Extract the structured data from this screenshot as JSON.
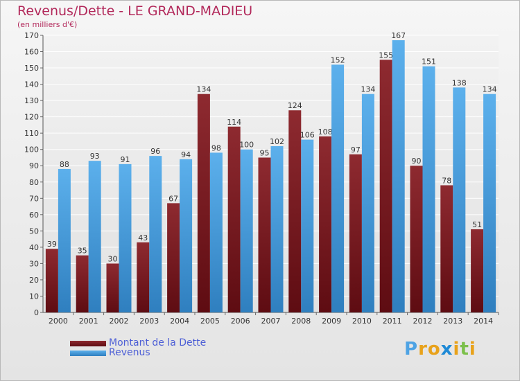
{
  "colors": {
    "debt": "#7a1c22",
    "revenue": "#4ea3e4",
    "title": "#b2285a",
    "legend_text": "#4d5fd6"
  },
  "logo": {
    "text": "Proxiti",
    "letter_colors": [
      "#4ea3e4",
      "#e8a21b",
      "#e8a21b",
      "#1f8ad6",
      "#e8a21b",
      "#7cc04b",
      "#e8a21b"
    ]
  },
  "chart_data": {
    "type": "bar",
    "title": "Revenus/Dette - LE GRAND-MADIEU",
    "subtitle": "(en milliers d'€)",
    "categories": [
      "2000",
      "2001",
      "2002",
      "2003",
      "2004",
      "2005",
      "2006",
      "2007",
      "2008",
      "2009",
      "2010",
      "2011",
      "2012",
      "2013",
      "2014"
    ],
    "series": [
      {
        "name": "Montant de la Dette",
        "values": [
          39,
          35,
          30,
          43,
          67,
          134,
          114,
          95,
          124,
          108,
          97,
          155,
          90,
          78,
          51
        ]
      },
      {
        "name": "Revenus",
        "values": [
          88,
          93,
          91,
          96,
          94,
          98,
          100,
          102,
          106,
          152,
          134,
          167,
          151,
          138,
          134
        ]
      }
    ],
    "ylim": [
      0,
      170
    ],
    "yticks": [
      0,
      10,
      20,
      30,
      40,
      50,
      60,
      70,
      80,
      90,
      100,
      110,
      120,
      130,
      140,
      150,
      160,
      170
    ],
    "grid": true,
    "legend_position": "bottom-left"
  }
}
